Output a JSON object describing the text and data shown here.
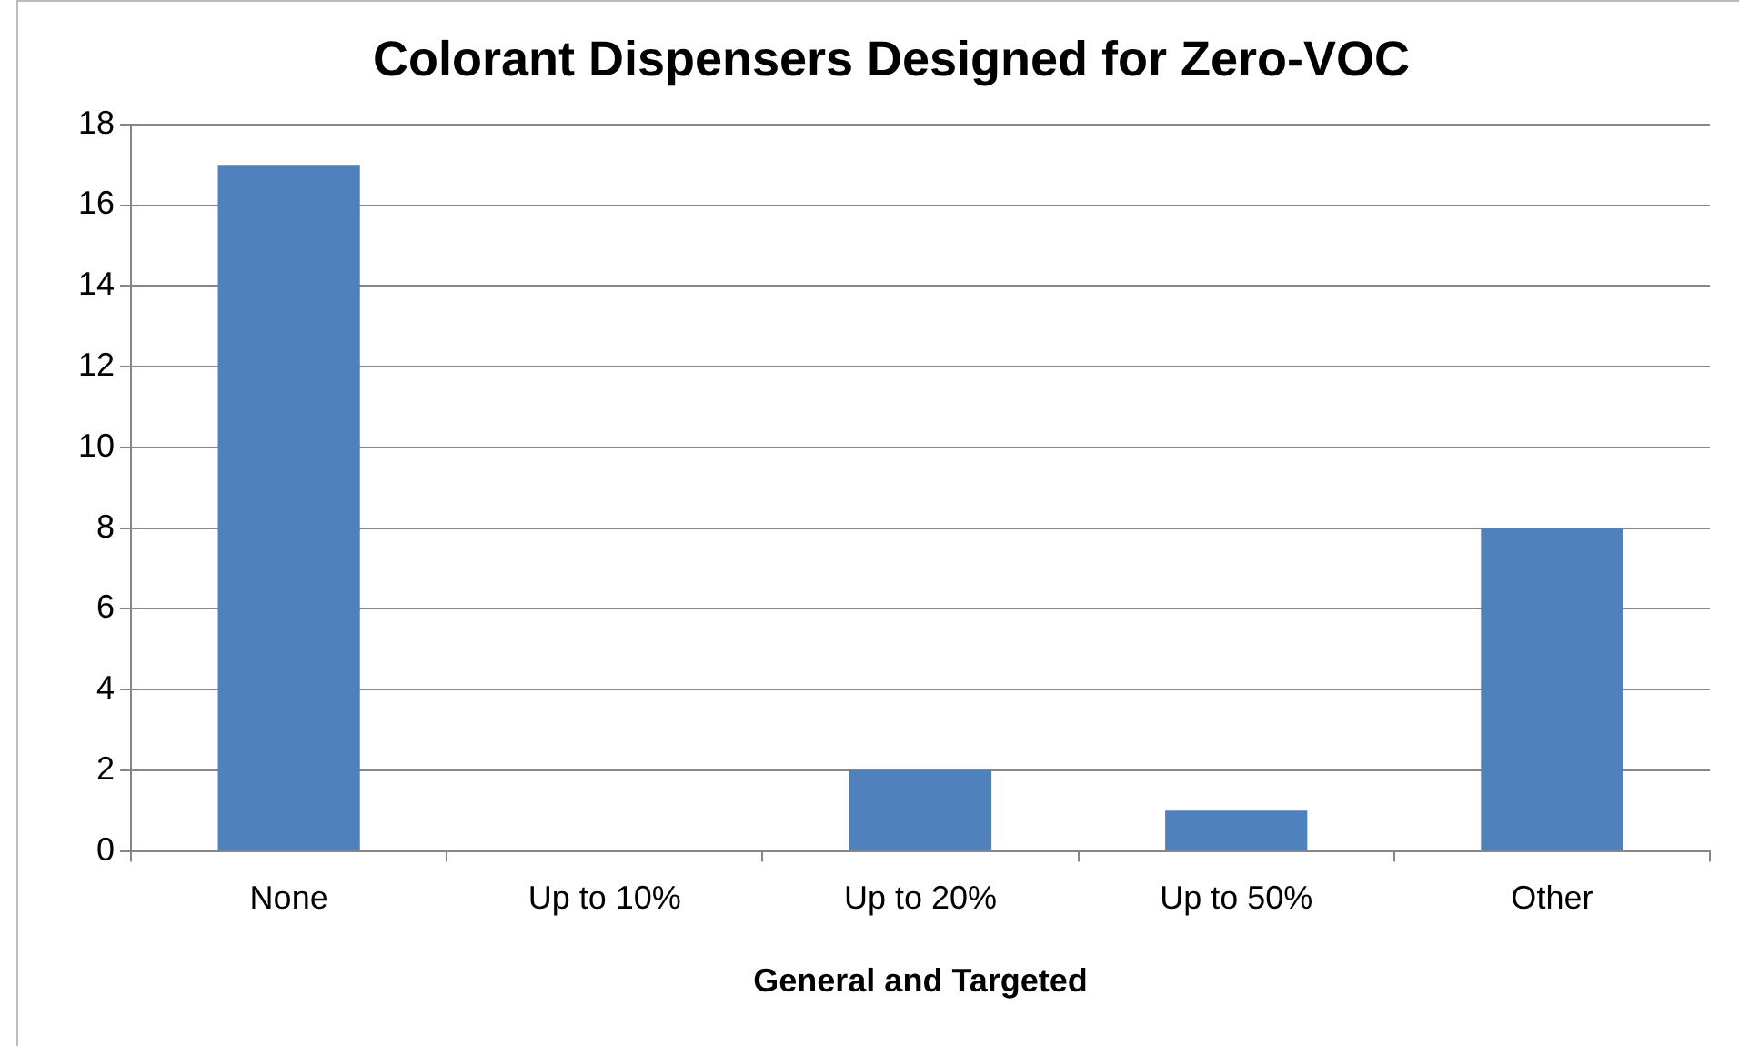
{
  "chart_data": {
    "type": "bar",
    "title": "Colorant Dispensers Designed for Zero-VOC",
    "xlabel": "General and Targeted",
    "categories": [
      "None",
      "Up to 10%",
      "Up to 20%",
      "Up to 50%",
      "Other"
    ],
    "values": [
      17,
      0,
      2,
      1,
      8
    ],
    "color": "#4f81bd",
    "ylim": [
      0,
      18
    ],
    "yticks": [
      0,
      2,
      4,
      6,
      8,
      10,
      12,
      14,
      16,
      18
    ],
    "grid": "y",
    "legend": false
  }
}
